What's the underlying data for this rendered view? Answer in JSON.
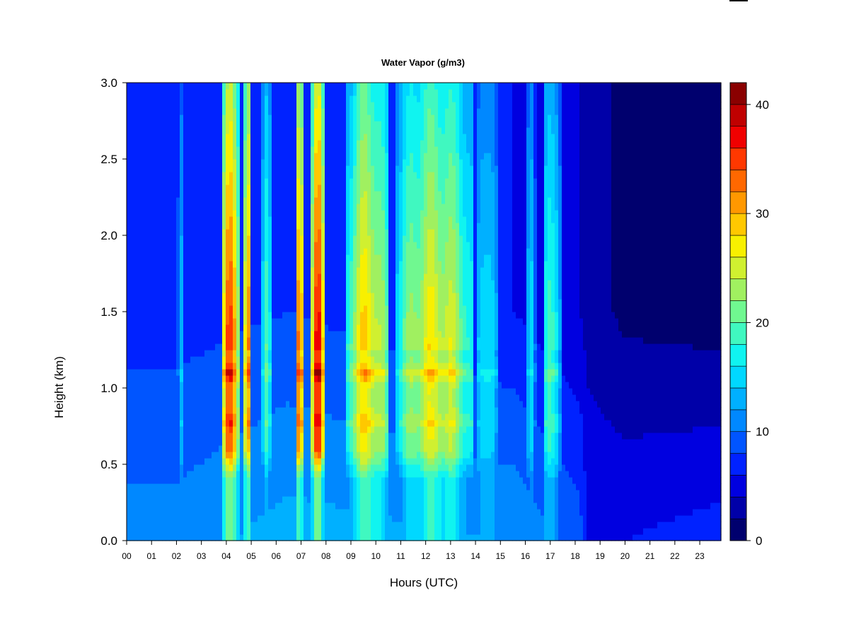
{
  "chart_data": {
    "type": "heatmap",
    "title": "Water Vapor (g/m3)",
    "xlabel": "Hours (UTC)",
    "ylabel": "Height (km)",
    "xlim": [
      0,
      23.85
    ],
    "ylim": [
      0,
      3.0
    ],
    "x_ticks": [
      0,
      1,
      2,
      3,
      4,
      5,
      6,
      7,
      8,
      9,
      10,
      11,
      12,
      13,
      14,
      15,
      16,
      17,
      18,
      19,
      20,
      21,
      22,
      23
    ],
    "x_tick_labels": [
      "00",
      "01",
      "02",
      "03",
      "04",
      "05",
      "06",
      "07",
      "08",
      "09",
      "10",
      "11",
      "12",
      "13",
      "14",
      "15",
      "16",
      "17",
      "18",
      "19",
      "20",
      "21",
      "22",
      "23"
    ],
    "y_ticks": [
      0,
      0.5,
      1.0,
      1.5,
      2.0,
      2.5,
      3.0
    ],
    "y_tick_labels": [
      "0.0",
      "0.5",
      "1.0",
      "1.5",
      "2.0",
      "2.5",
      "3.0"
    ],
    "colorbar": {
      "min": 0,
      "max": 42,
      "ticks": [
        0,
        10,
        20,
        30,
        40
      ],
      "tick_labels": [
        "0",
        "10",
        "20",
        "30",
        "40"
      ],
      "levels": [
        {
          "from": 0,
          "to": 2,
          "color": "#00006e"
        },
        {
          "from": 2,
          "to": 4,
          "color": "#0000a8"
        },
        {
          "from": 4,
          "to": 6,
          "color": "#0000e0"
        },
        {
          "from": 6,
          "to": 8,
          "color": "#0022ff"
        },
        {
          "from": 8,
          "to": 10,
          "color": "#0055ff"
        },
        {
          "from": 10,
          "to": 12,
          "color": "#0088ff"
        },
        {
          "from": 12,
          "to": 14,
          "color": "#00b0ff"
        },
        {
          "from": 14,
          "to": 16,
          "color": "#00d8ff"
        },
        {
          "from": 16,
          "to": 18,
          "color": "#10f4f0"
        },
        {
          "from": 18,
          "to": 20,
          "color": "#40f8c0"
        },
        {
          "from": 20,
          "to": 22,
          "color": "#70f890"
        },
        {
          "from": 22,
          "to": 24,
          "color": "#a0f060"
        },
        {
          "from": 24,
          "to": 26,
          "color": "#d0f030"
        },
        {
          "from": 26,
          "to": 28,
          "color": "#f8f000"
        },
        {
          "from": 28,
          "to": 30,
          "color": "#ffc800"
        },
        {
          "from": 30,
          "to": 32,
          "color": "#ff9800"
        },
        {
          "from": 32,
          "to": 34,
          "color": "#ff6800"
        },
        {
          "from": 34,
          "to": 36,
          "color": "#ff3800"
        },
        {
          "from": 36,
          "to": 38,
          "color": "#f00000"
        },
        {
          "from": 38,
          "to": 40,
          "color": "#c00000"
        },
        {
          "from": 40,
          "to": 42,
          "color": "#8a0000"
        }
      ]
    },
    "events": [
      {
        "start": 2.05,
        "end": 2.25,
        "peak": 17,
        "low_factor": 0.75
      },
      {
        "start": 3.8,
        "end": 4.55,
        "peak": 40,
        "low_factor": 0.55
      },
      {
        "start": 4.7,
        "end": 5.0,
        "peak": 37,
        "low_factor": 0.55
      },
      {
        "start": 5.4,
        "end": 5.8,
        "peak": 24,
        "low_factor": 0.6
      },
      {
        "start": 6.75,
        "end": 7.15,
        "peak": 38,
        "low_factor": 0.55
      },
      {
        "start": 7.4,
        "end": 7.95,
        "peak": 42,
        "low_factor": 0.5
      },
      {
        "start": 8.8,
        "end": 10.55,
        "peak": 33,
        "low_factor": 0.6
      },
      {
        "start": 10.8,
        "end": 13.95,
        "peak": 31,
        "low_factor": 0.6
      },
      {
        "start": 14.0,
        "end": 14.9,
        "peak": 20,
        "low_factor": 0.75
      },
      {
        "start": 16.05,
        "end": 16.4,
        "peak": 20,
        "low_factor": 0.65
      },
      {
        "start": 16.7,
        "end": 17.4,
        "peak": 24,
        "low_factor": 0.65
      }
    ],
    "background_profile": [
      {
        "x": 0,
        "surface": 11,
        "aloft": 7
      },
      {
        "x": 2.0,
        "surface": 11,
        "aloft": 7
      },
      {
        "x": 6.5,
        "surface": 13,
        "aloft": 8
      },
      {
        "x": 15.5,
        "surface": 12,
        "aloft": 6
      },
      {
        "x": 18.2,
        "surface": 9,
        "aloft": 4
      },
      {
        "x": 18.5,
        "surface": 6,
        "aloft": 3
      },
      {
        "x": 20.0,
        "surface": 6,
        "aloft": 1.5
      },
      {
        "x": 23.85,
        "surface": 7,
        "aloft": 1
      }
    ]
  }
}
